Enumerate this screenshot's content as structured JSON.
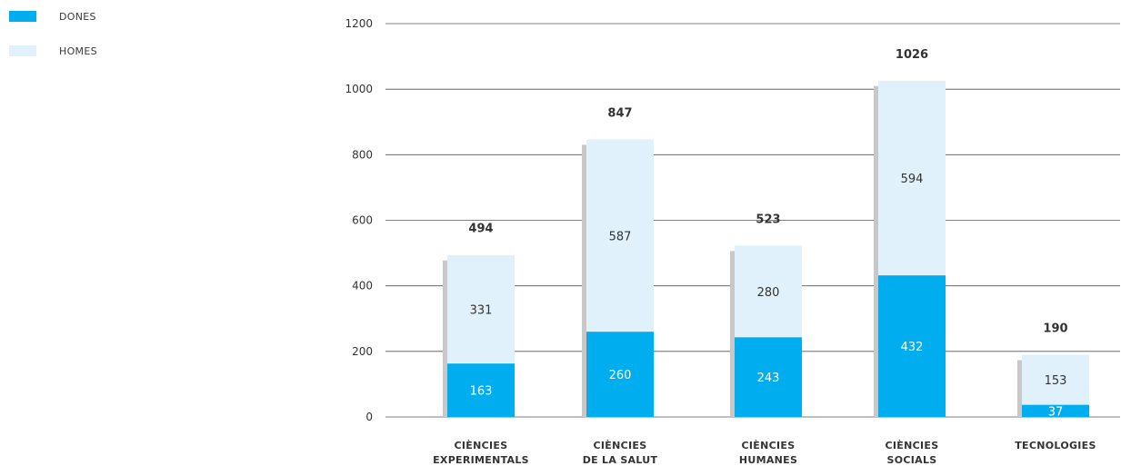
{
  "legend": {
    "items": [
      {
        "label": "DONES",
        "color": "#00AEEF"
      },
      {
        "label": "HOMES",
        "color": "#E0F1FB"
      }
    ]
  },
  "chart_data": {
    "type": "bar",
    "stacked": true,
    "categories": [
      [
        "CIÈNCIES",
        "EXPERIMENTALS"
      ],
      [
        "CIÈNCIES",
        "DE LA SALUT"
      ],
      [
        "CIÈNCIES",
        "HUMANES"
      ],
      [
        "CIÈNCIES",
        "SOCIALS"
      ],
      [
        "TECNOLOGIES"
      ]
    ],
    "series": [
      {
        "name": "DONES",
        "values": [
          163,
          260,
          243,
          432,
          37
        ],
        "color": "#00AEEF"
      },
      {
        "name": "HOMES",
        "values": [
          331,
          587,
          280,
          594,
          153
        ],
        "color": "#E0F1FB"
      }
    ],
    "totals": [
      494,
      847,
      523,
      1026,
      190
    ],
    "ylim": [
      0,
      1200
    ],
    "yticks": [
      0,
      200,
      400,
      600,
      800,
      1000,
      1200
    ],
    "grid": true,
    "legend_position": "top-left",
    "shadow_color": "#C8C8C8"
  }
}
